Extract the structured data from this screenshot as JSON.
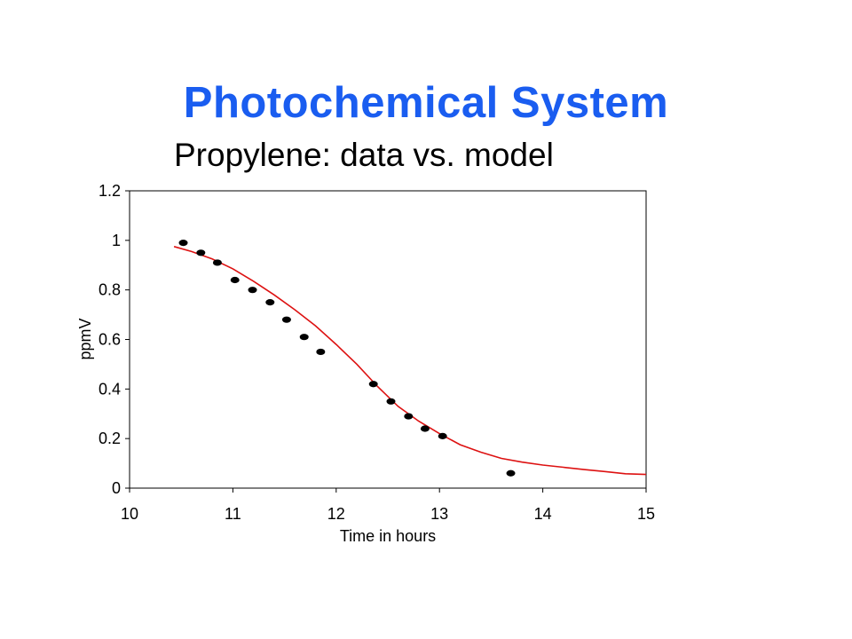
{
  "slide": {
    "title": "Photochemical System"
  },
  "chart_data": {
    "type": "scatter",
    "title": "Propylene: data vs. model",
    "xlabel": "Time in hours",
    "ylabel": "ppmV",
    "xlim": [
      10,
      15
    ],
    "ylim": [
      0,
      1.2
    ],
    "x_ticks": [
      10,
      11,
      12,
      13,
      14,
      15
    ],
    "y_ticks": [
      0,
      0.2,
      0.4,
      0.6,
      0.8,
      1,
      1.2
    ],
    "grid": false,
    "legend": "none",
    "series": [
      {
        "kind": "points",
        "color": "#000000",
        "points": [
          [
            10.52,
            0.99
          ],
          [
            10.69,
            0.95
          ],
          [
            10.85,
            0.91
          ],
          [
            11.02,
            0.84
          ],
          [
            11.19,
            0.8
          ],
          [
            11.36,
            0.75
          ],
          [
            11.52,
            0.68
          ],
          [
            11.69,
            0.61
          ],
          [
            11.85,
            0.55
          ],
          [
            12.36,
            0.42
          ],
          [
            12.53,
            0.35
          ],
          [
            12.7,
            0.29
          ],
          [
            12.86,
            0.24
          ],
          [
            13.03,
            0.21
          ],
          [
            13.69,
            0.06
          ]
        ]
      },
      {
        "kind": "line",
        "color": "#dd1111",
        "points": [
          [
            10.43,
            0.975
          ],
          [
            10.6,
            0.955
          ],
          [
            10.8,
            0.925
          ],
          [
            11.0,
            0.885
          ],
          [
            11.2,
            0.835
          ],
          [
            11.4,
            0.78
          ],
          [
            11.6,
            0.72
          ],
          [
            11.8,
            0.655
          ],
          [
            12.0,
            0.58
          ],
          [
            12.2,
            0.5
          ],
          [
            12.4,
            0.41
          ],
          [
            12.6,
            0.33
          ],
          [
            12.8,
            0.27
          ],
          [
            13.0,
            0.22
          ],
          [
            13.2,
            0.175
          ],
          [
            13.4,
            0.145
          ],
          [
            13.6,
            0.12
          ],
          [
            13.8,
            0.105
          ],
          [
            14.0,
            0.093
          ],
          [
            14.2,
            0.084
          ],
          [
            14.4,
            0.075
          ],
          [
            14.6,
            0.067
          ],
          [
            14.8,
            0.058
          ],
          [
            15.0,
            0.055
          ]
        ]
      }
    ]
  }
}
